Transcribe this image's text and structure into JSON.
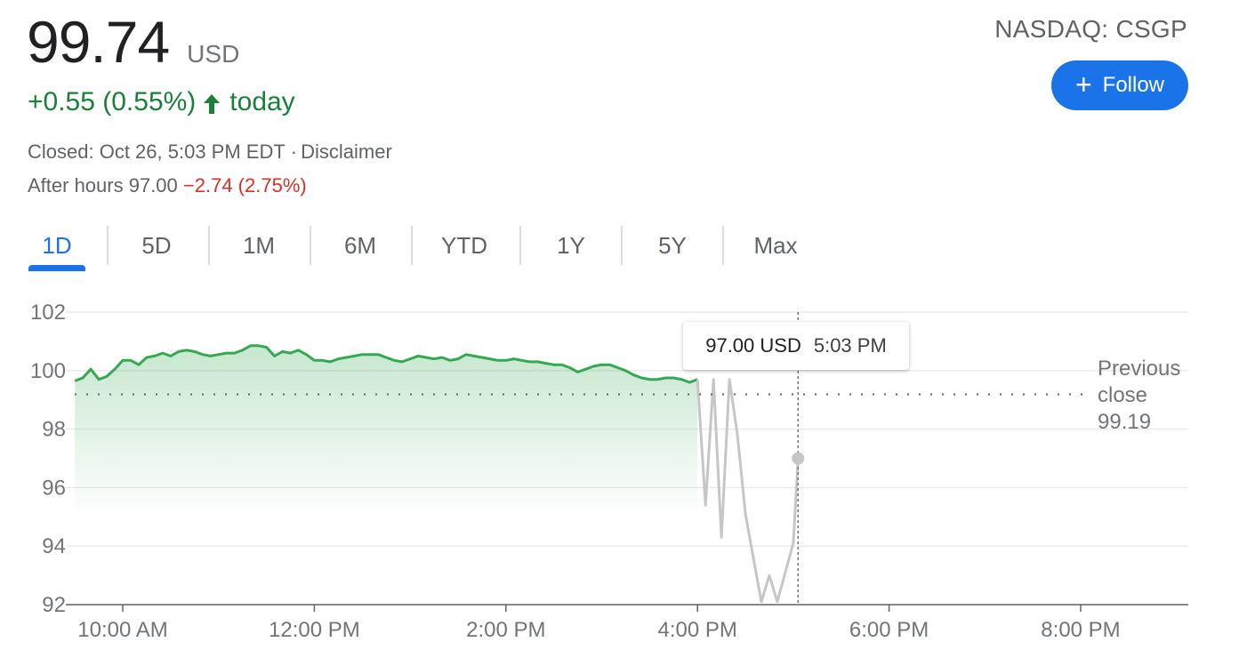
{
  "quote": {
    "price": "99.74",
    "currency": "USD",
    "change": "+0.55 (0.55%)",
    "change_suffix": "today",
    "ticker": "NASDAQ: CSGP",
    "follow_label": "Follow",
    "closed_text": "Closed: Oct 26, 5:03 PM EDT",
    "separator": "·",
    "disclaimer": "Disclaimer",
    "after_hours_label": "After hours 97.00",
    "after_hours_change": "−2.74 (2.75%)"
  },
  "tabs": [
    {
      "label": "1D",
      "active": true
    },
    {
      "label": "5D",
      "active": false
    },
    {
      "label": "1M",
      "active": false
    },
    {
      "label": "6M",
      "active": false
    },
    {
      "label": "YTD",
      "active": false
    },
    {
      "label": "1Y",
      "active": false
    },
    {
      "label": "5Y",
      "active": false
    },
    {
      "label": "Max",
      "active": false
    }
  ],
  "tooltip": {
    "price": "97.00 USD",
    "time": "5:03 PM"
  },
  "previous_close": {
    "line1": "Previous",
    "line2": "close",
    "value": "99.19"
  },
  "colors": {
    "up": "#188038",
    "line": "#34a853",
    "after_hours": "#c6c6c6",
    "accent": "#1a73e8",
    "down": "#d93025"
  },
  "chart_data": {
    "type": "area",
    "ylim": [
      92,
      102
    ],
    "xlim": [
      "9:30 AM",
      "8:30 PM"
    ],
    "yticks": [
      "102",
      "100",
      "98",
      "96",
      "94",
      "92"
    ],
    "xticks": [
      "10:00 AM",
      "12:00 PM",
      "2:00 PM",
      "4:00 PM",
      "6:00 PM",
      "8:00 PM"
    ],
    "grid": true,
    "reference_line": {
      "value": 99.19
    },
    "cursor": {
      "time": "5:03 PM",
      "value": 97.0
    },
    "series": [
      {
        "session": "regular",
        "x": [
          "9:30 AM",
          "9:35 AM",
          "9:40 AM",
          "9:45 AM",
          "9:50 AM",
          "9:55 AM",
          "10:00 AM",
          "10:05 AM",
          "10:10 AM",
          "10:15 AM",
          "10:20 AM",
          "10:25 AM",
          "10:30 AM",
          "10:35 AM",
          "10:40 AM",
          "10:45 AM",
          "10:50 AM",
          "10:55 AM",
          "11:00 AM",
          "11:05 AM",
          "11:10 AM",
          "11:15 AM",
          "11:20 AM",
          "11:25 AM",
          "11:30 AM",
          "11:35 AM",
          "11:40 AM",
          "11:45 AM",
          "11:50 AM",
          "11:55 AM",
          "12:00 PM",
          "12:05 PM",
          "12:10 PM",
          "12:15 PM",
          "12:20 PM",
          "12:25 PM",
          "12:30 PM",
          "12:35 PM",
          "12:40 PM",
          "12:45 PM",
          "12:50 PM",
          "12:55 PM",
          "1:00 PM",
          "1:05 PM",
          "1:10 PM",
          "1:15 PM",
          "1:20 PM",
          "1:25 PM",
          "1:30 PM",
          "1:35 PM",
          "1:40 PM",
          "1:45 PM",
          "1:50 PM",
          "1:55 PM",
          "2:00 PM",
          "2:05 PM",
          "2:10 PM",
          "2:15 PM",
          "2:20 PM",
          "2:25 PM",
          "2:30 PM",
          "2:35 PM",
          "2:40 PM",
          "2:45 PM",
          "2:50 PM",
          "2:55 PM",
          "3:00 PM",
          "3:05 PM",
          "3:10 PM",
          "3:15 PM",
          "3:20 PM",
          "3:25 PM",
          "3:30 PM",
          "3:35 PM",
          "3:40 PM",
          "3:45 PM",
          "3:50 PM",
          "3:55 PM",
          "4:00 PM"
        ],
        "values": [
          99.65,
          99.75,
          100.05,
          99.7,
          99.8,
          100.05,
          100.35,
          100.35,
          100.2,
          100.45,
          100.5,
          100.6,
          100.5,
          100.65,
          100.7,
          100.65,
          100.55,
          100.5,
          100.55,
          100.6,
          100.6,
          100.7,
          100.85,
          100.85,
          100.8,
          100.5,
          100.65,
          100.6,
          100.7,
          100.55,
          100.35,
          100.35,
          100.3,
          100.4,
          100.45,
          100.5,
          100.55,
          100.55,
          100.55,
          100.45,
          100.35,
          100.3,
          100.4,
          100.5,
          100.45,
          100.4,
          100.45,
          100.35,
          100.4,
          100.55,
          100.5,
          100.45,
          100.4,
          100.35,
          100.35,
          100.4,
          100.35,
          100.3,
          100.3,
          100.25,
          100.2,
          100.2,
          100.1,
          99.95,
          100.05,
          100.15,
          100.2,
          100.2,
          100.1,
          100.0,
          99.85,
          99.75,
          99.7,
          99.7,
          99.75,
          99.75,
          99.7,
          99.6,
          99.7
        ]
      },
      {
        "session": "after_hours",
        "x": [
          "4:00 PM",
          "4:05 PM",
          "4:10 PM",
          "4:15 PM",
          "4:20 PM",
          "4:25 PM",
          "4:30 PM",
          "4:35 PM",
          "4:40 PM",
          "4:45 PM",
          "4:50 PM",
          "4:55 PM",
          "5:00 PM",
          "5:03 PM"
        ],
        "values": [
          99.7,
          95.4,
          99.7,
          94.3,
          99.7,
          97.8,
          95.1,
          93.6,
          92.1,
          93.0,
          92.1,
          93.1,
          94.1,
          97.0
        ]
      }
    ]
  }
}
